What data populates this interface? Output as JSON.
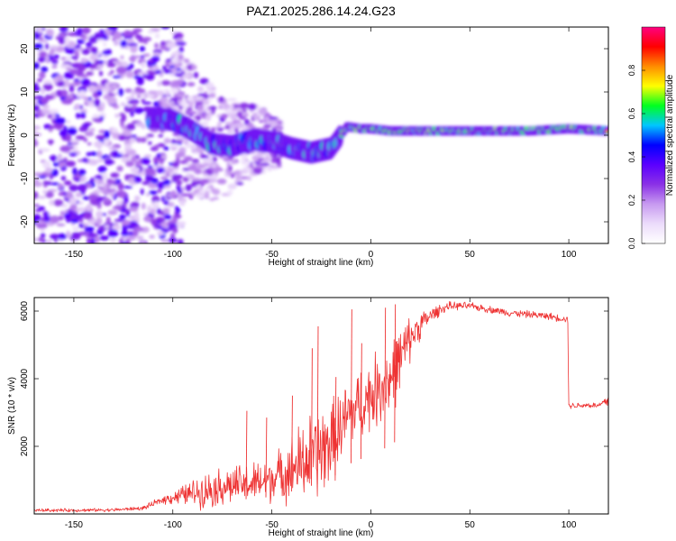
{
  "figure": {
    "title": "PAZ1.2025.286.14.24.G23"
  },
  "chart_data": [
    {
      "type": "heatmap",
      "name": "spectrogram",
      "title": "PAZ1.2025.286.14.24.G23",
      "xlabel": "Height of straight line (km)",
      "ylabel": "Frequency (Hz)",
      "xlim": [
        -170,
        120
      ],
      "ylim": [
        -25,
        25
      ],
      "xticks": [
        -150,
        -100,
        -50,
        0,
        50,
        100
      ],
      "yticks": [
        -20,
        -10,
        0,
        10,
        20
      ],
      "ridge_x": [
        -110,
        -100,
        -90,
        -80,
        -70,
        -60,
        -50,
        -40,
        -30,
        -20,
        -12,
        -5,
        0,
        10,
        20,
        40,
        60,
        80,
        100,
        120
      ],
      "ridge_freq": [
        4,
        3.5,
        1,
        -2,
        -2.5,
        -1,
        -1.5,
        -3,
        -4,
        -3,
        2,
        1.5,
        1.5,
        1,
        1,
        1,
        1,
        1,
        1.5,
        1
      ],
      "colorbar": {
        "label": "Normalized spectral amplitude",
        "range": [
          0,
          1
        ],
        "ticks": [
          0.0,
          0.2,
          0.4,
          0.6,
          0.8
        ],
        "tick_labels": [
          "0.0",
          "0.2",
          "0.4",
          "0.6",
          "0.8"
        ],
        "colors": [
          "#ffffff",
          "#ecdcfb",
          "#c79af0",
          "#8b31e6",
          "#5b00ff",
          "#0000ff",
          "#00c6ff",
          "#00ff20",
          "#ffff00",
          "#ff8c00",
          "#ff0000",
          "#ff0080"
        ]
      }
    },
    {
      "type": "line",
      "name": "snr",
      "xlabel": "Height of straight line (km)",
      "ylabel": "SNR (10 * v/v)",
      "xlim": [
        -170,
        120
      ],
      "ylim": [
        0,
        6400
      ],
      "xticks": [
        -150,
        -100,
        -50,
        0,
        50,
        100
      ],
      "yticks": [
        2000,
        4000,
        6000
      ],
      "color": "#ee3333",
      "series": [
        {
          "name": "SNR",
          "x": [
            -170,
            -150,
            -130,
            -115,
            -105,
            -95,
            -85,
            -75,
            -65,
            -55,
            -45,
            -35,
            -25,
            -20,
            -15,
            -10,
            -5,
            0,
            5,
            10,
            15,
            20,
            25,
            30,
            35,
            40,
            50,
            60,
            70,
            80,
            90,
            99.5,
            100,
            110,
            115,
            118,
            120
          ],
          "y": [
            110,
            110,
            120,
            170,
            420,
            560,
            680,
            820,
            860,
            930,
            1180,
            1480,
            1850,
            2100,
            2550,
            3000,
            3250,
            3500,
            3800,
            4000,
            4600,
            5200,
            5600,
            5850,
            6050,
            6150,
            6150,
            6050,
            5950,
            5900,
            5850,
            5750,
            3200,
            3220,
            3200,
            3300,
            3350
          ],
          "noise": [
            60,
            60,
            60,
            70,
            150,
            350,
            600,
            700,
            700,
            800,
            900,
            1500,
            1700,
            1500,
            1400,
            1300,
            1300,
            1300,
            1400,
            1400,
            1200,
            800,
            500,
            300,
            200,
            150,
            130,
            130,
            130,
            130,
            130,
            130,
            110,
            110,
            110,
            200,
            250
          ],
          "spikes": [
            {
              "x": -63,
              "y": 3050
            },
            {
              "x": -53,
              "y": 2850
            },
            {
              "x": -40,
              "y": 3500
            },
            {
              "x": -30,
              "y": 4900
            },
            {
              "x": -27,
              "y": 5550
            },
            {
              "x": -18,
              "y": 4050
            },
            {
              "x": -10,
              "y": 6050
            },
            {
              "x": -5,
              "y": 5050
            },
            {
              "x": 7,
              "y": 6100
            },
            {
              "x": 12,
              "y": 6200
            }
          ]
        }
      ]
    }
  ]
}
